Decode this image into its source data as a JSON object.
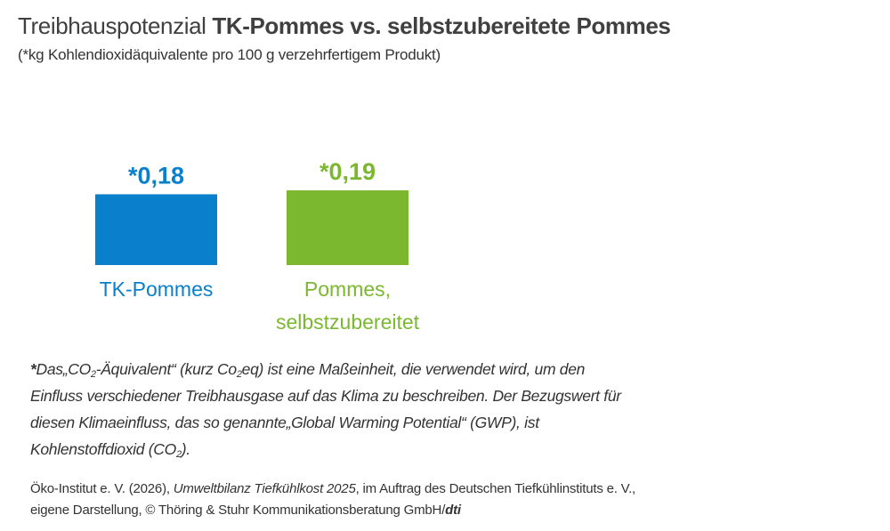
{
  "title": {
    "prefix": "Treibhauspotenzial ",
    "bold": "TK-Pommes vs. selbstzubereitete Pommes"
  },
  "subtitle": "(*kg Kohlendioxidäquivalente pro 100 g verzehrfertigem Produkt)",
  "chart_data": {
    "type": "bar",
    "title": "Treibhauspotenzial TK-Pommes vs. selbstzubereitete Pommes",
    "ylabel": "*kg Kohlendioxidäquivalente pro 100 g verzehrfertigem Produkt",
    "categories": [
      "TK-Pommes",
      "Pommes, selbstzubereitet"
    ],
    "category_lines": [
      [
        "TK-Pommes"
      ],
      [
        "Pommes,",
        "selbstzubereitet"
      ]
    ],
    "values": [
      0.18,
      0.19
    ],
    "value_labels": [
      "*0,18",
      "*0,19"
    ],
    "colors": [
      "#0a7fcb",
      "#7bb830"
    ],
    "ylim": [
      0,
      0.19
    ],
    "grid": false
  },
  "footnote": {
    "star": "*",
    "p1": "Das„CO",
    "sub1": "2",
    "p2": "-Äquivalent“ (kurz Co",
    "sub2": "2",
    "p3": "eq) ist eine Maßeinheit, die verwendet wird, um den Einfluss verschiedener Treibhausgase auf das Klima zu beschreiben. Der Bezugswert für diesen Klimaeinfluss, das so genannte„Global Warming Potential“ (GWP), ist Kohlenstoffdioxid (CO",
    "sub3": "2",
    "p4": ")."
  },
  "source": {
    "p1": "Öko-Institut e. V. (2026), ",
    "italic": "Umweltbilanz Tiefkühlkost 2025",
    "p2": ", im Auftrag des Deutschen Tiefkühlinstituts e. V.,",
    "p3": "eigene Darstellung, © Thöring & Stuhr Kommunikationsberatung GmbH/",
    "brand": "dti"
  }
}
